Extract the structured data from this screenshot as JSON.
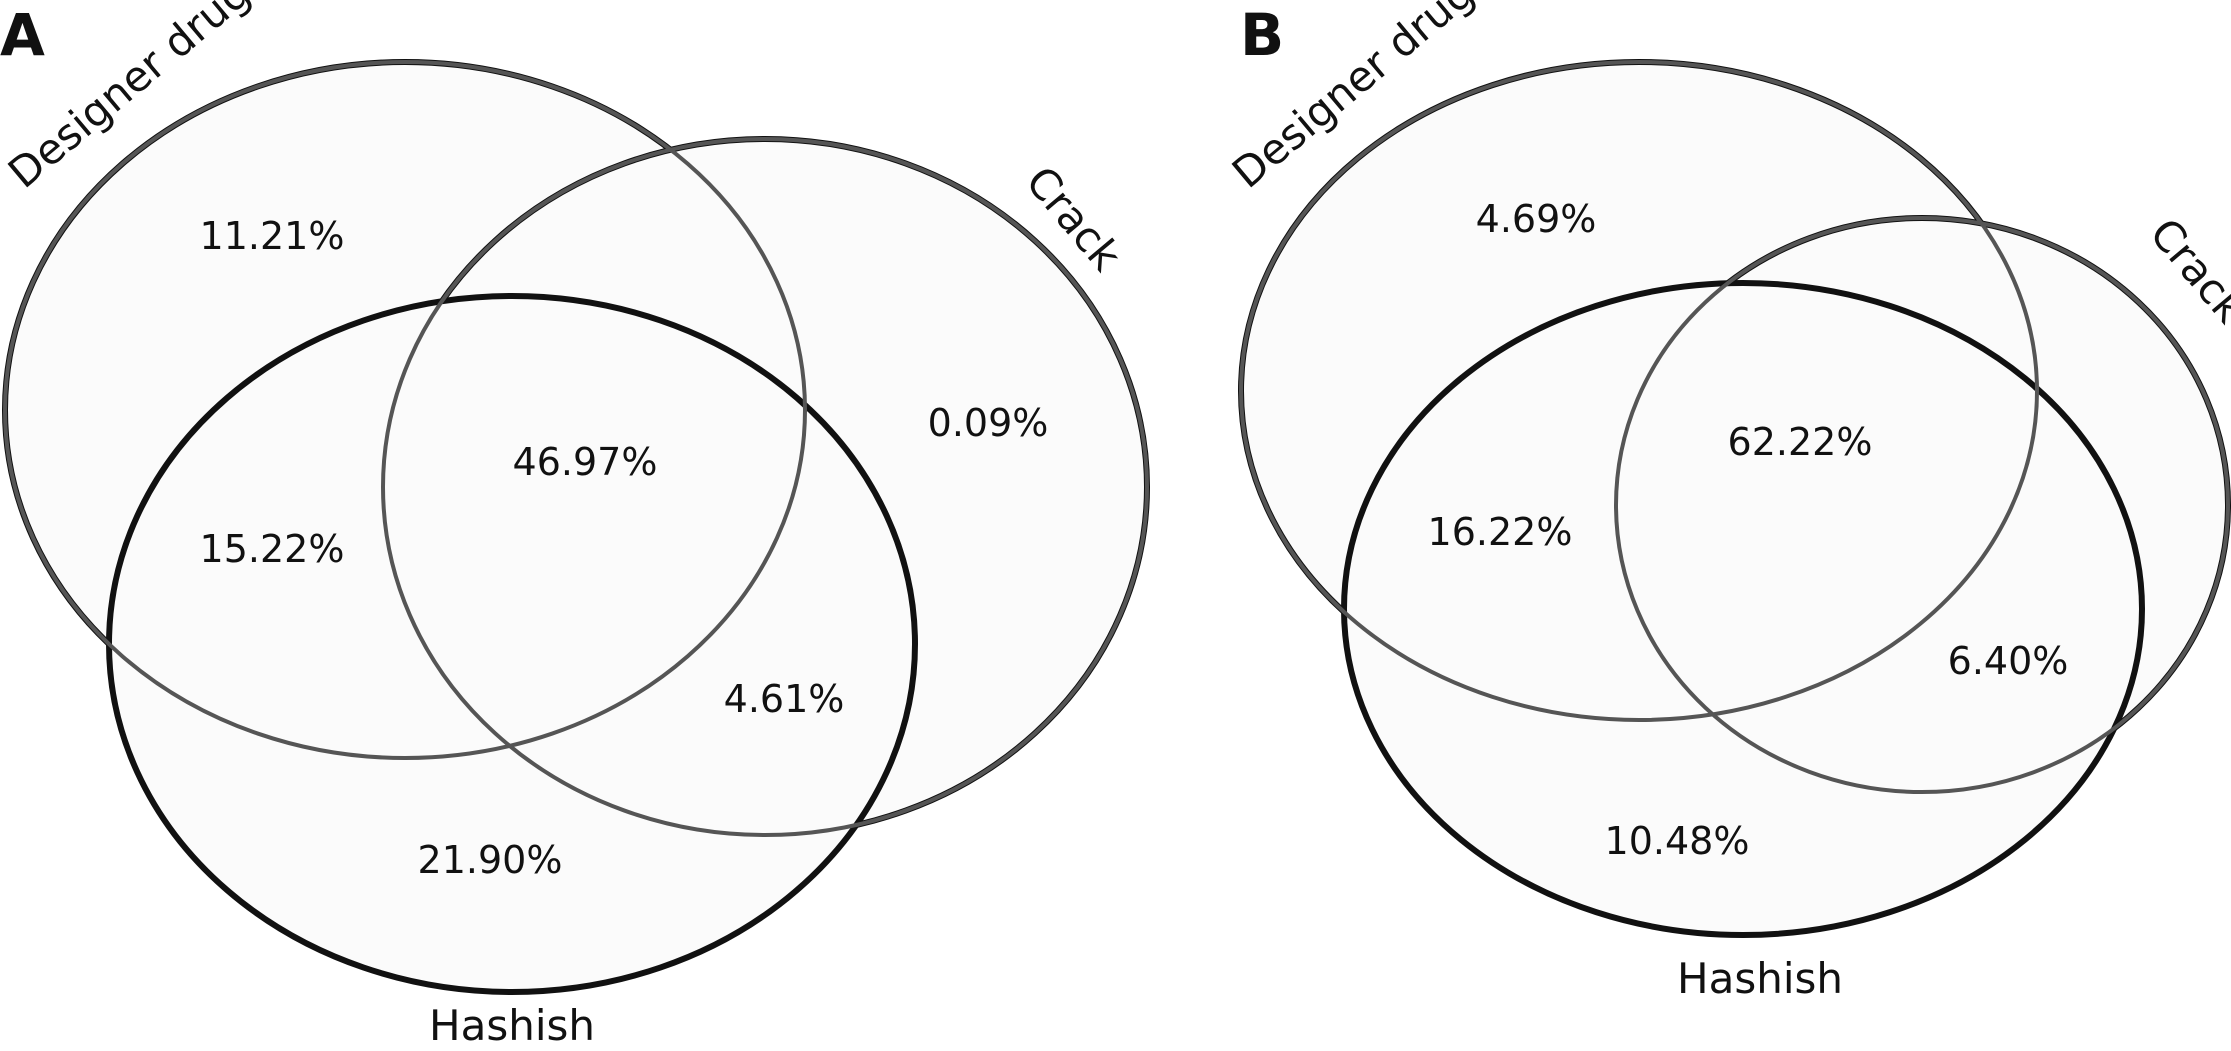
{
  "figure": {
    "panels": [
      {
        "letter": "A",
        "sets": {
          "designer": "Designer drugs",
          "crack": "Crack",
          "hashish": "Hashish"
        },
        "regions": {
          "designer_only": "11.21%",
          "crack_only": "0.09%",
          "all_three": "46.97%",
          "designer_hashish": "15.22%",
          "crack_hashish": "4.61%",
          "hashish_only": "21.90%"
        }
      },
      {
        "letter": "B",
        "sets": {
          "designer": "Designer drugs",
          "crack": "Crack",
          "hashish": "Hashish"
        },
        "regions": {
          "designer_only": "4.69%",
          "all_three": "62.22%",
          "designer_hashish": "16.22%",
          "crack_hashish": "6.40%",
          "hashish_only": "10.48%"
        }
      }
    ]
  },
  "colors": {
    "outline": "#111111",
    "inner_outline": "#555555",
    "fill": "#fbfbfb"
  }
}
